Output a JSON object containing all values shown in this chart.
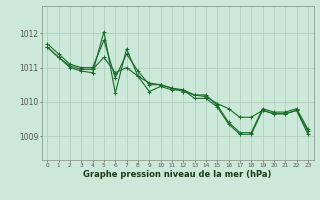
{
  "bg_color": "#cce8d8",
  "grid_color": "#aaccbb",
  "line_color": "#1a6b2a",
  "xlabel": "Graphe pression niveau de la mer (hPa)",
  "ylabel_ticks": [
    1009,
    1010,
    1011,
    1012
  ],
  "xlim": [
    -0.5,
    23.5
  ],
  "ylim": [
    1008.3,
    1012.8
  ],
  "series1": [
    1011.7,
    1011.4,
    1011.1,
    1011.0,
    1011.0,
    1011.8,
    1010.7,
    1011.4,
    1010.9,
    1010.5,
    1010.5,
    1010.4,
    1010.3,
    1010.2,
    1010.2,
    1009.9,
    1009.4,
    1009.1,
    1009.1,
    1009.8,
    1009.7,
    1009.7,
    1009.8,
    1009.2
  ],
  "series2": [
    1011.6,
    1011.3,
    1011.05,
    1010.95,
    1010.95,
    1011.3,
    1010.85,
    1011.0,
    1010.75,
    1010.55,
    1010.5,
    1010.4,
    1010.35,
    1010.2,
    1010.15,
    1009.95,
    1009.8,
    1009.55,
    1009.55,
    1009.75,
    1009.65,
    1009.65,
    1009.75,
    1009.15
  ],
  "series3": [
    1011.6,
    1011.3,
    1011.0,
    1010.9,
    1010.85,
    1012.05,
    1010.25,
    1011.55,
    1010.75,
    1010.3,
    1010.45,
    1010.35,
    1010.35,
    1010.1,
    1010.1,
    1009.85,
    1009.35,
    1009.05,
    1009.05,
    1009.75,
    1009.65,
    1009.65,
    1009.75,
    1009.05
  ],
  "xticks": [
    0,
    1,
    2,
    3,
    4,
    5,
    6,
    7,
    8,
    9,
    10,
    11,
    12,
    13,
    14,
    15,
    16,
    17,
    18,
    19,
    20,
    21,
    22,
    23
  ]
}
